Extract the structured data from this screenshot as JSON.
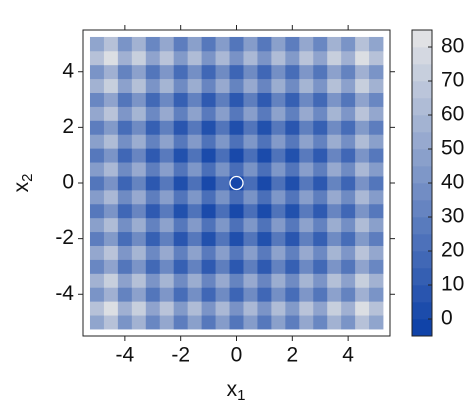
{
  "chart_data": {
    "type": "heatmap",
    "xlabel": "x",
    "xlabel_sub": "1",
    "ylabel": "x",
    "ylabel_sub": "2",
    "x": [
      -5,
      -4.5,
      -4,
      -3.5,
      -3,
      -2.5,
      -2,
      -1.5,
      -1,
      -0.5,
      0,
      0.5,
      1,
      1.5,
      2,
      2.5,
      3,
      3.5,
      4,
      4.5,
      5
    ],
    "y": [
      -5,
      -4.5,
      -4,
      -3.5,
      -3,
      -2.5,
      -2,
      -1.5,
      -1,
      -0.5,
      0,
      0.5,
      1,
      1.5,
      2,
      2.5,
      3,
      3.5,
      4,
      4.5,
      5
    ],
    "z": [
      [
        50,
        65.25,
        41,
        57.25,
        34,
        51.25,
        29,
        47.25,
        26,
        45.25,
        25,
        45.25,
        26,
        47.25,
        29,
        51.25,
        34,
        57.25,
        41,
        65.25,
        50
      ],
      [
        65.25,
        80.5,
        56.25,
        72.5,
        49.25,
        66.5,
        44.25,
        62.5,
        41.25,
        60.5,
        40.25,
        60.5,
        41.25,
        62.5,
        44.25,
        66.5,
        49.25,
        72.5,
        56.25,
        80.5,
        65.25
      ],
      [
        41,
        56.25,
        32,
        48.25,
        25,
        42.25,
        20,
        38.25,
        17,
        36.25,
        16,
        36.25,
        17,
        38.25,
        20,
        42.25,
        25,
        48.25,
        32,
        56.25,
        41
      ],
      [
        57.25,
        72.5,
        48.25,
        64.5,
        41.25,
        58.5,
        36.25,
        54.5,
        33.25,
        52.5,
        32.25,
        52.5,
        33.25,
        54.5,
        36.25,
        58.5,
        41.25,
        64.5,
        48.25,
        72.5,
        57.25
      ],
      [
        34,
        49.25,
        25,
        41.25,
        18,
        35.25,
        13,
        31.25,
        10,
        29.25,
        9,
        29.25,
        10,
        31.25,
        13,
        35.25,
        18,
        41.25,
        25,
        49.25,
        34
      ],
      [
        51.25,
        66.5,
        42.25,
        58.5,
        35.25,
        52.5,
        30.25,
        48.5,
        27.25,
        46.5,
        26.25,
        46.5,
        27.25,
        48.5,
        30.25,
        52.5,
        35.25,
        58.5,
        42.25,
        66.5,
        51.25
      ],
      [
        29,
        44.25,
        20,
        36.25,
        13,
        30.25,
        8,
        26.25,
        5,
        24.25,
        4,
        24.25,
        5,
        26.25,
        8,
        30.25,
        13,
        36.25,
        20,
        44.25,
        29
      ],
      [
        47.25,
        62.5,
        38.25,
        54.5,
        31.25,
        48.5,
        26.25,
        44.5,
        23.25,
        42.5,
        22.25,
        42.5,
        23.25,
        44.5,
        26.25,
        48.5,
        31.25,
        54.5,
        38.25,
        62.5,
        47.25
      ],
      [
        26,
        41.25,
        17,
        33.25,
        10,
        27.25,
        5,
        23.25,
        2,
        21.25,
        1,
        21.25,
        2,
        23.25,
        5,
        27.25,
        10,
        33.25,
        17,
        41.25,
        26
      ],
      [
        45.25,
        60.5,
        36.25,
        52.5,
        29.25,
        46.5,
        24.25,
        42.5,
        21.25,
        40.5,
        20.25,
        40.5,
        21.25,
        42.5,
        24.25,
        46.5,
        29.25,
        52.5,
        36.25,
        60.5,
        45.25
      ],
      [
        25,
        40.25,
        16,
        32.25,
        9,
        26.25,
        4,
        22.25,
        1,
        20.25,
        0,
        20.25,
        1,
        22.25,
        4,
        26.25,
        9,
        32.25,
        16,
        40.25,
        25
      ],
      [
        45.25,
        60.5,
        36.25,
        52.5,
        29.25,
        46.5,
        24.25,
        42.5,
        21.25,
        40.5,
        20.25,
        40.5,
        21.25,
        42.5,
        24.25,
        46.5,
        29.25,
        52.5,
        36.25,
        60.5,
        45.25
      ],
      [
        26,
        41.25,
        17,
        33.25,
        10,
        27.25,
        5,
        23.25,
        2,
        21.25,
        1,
        21.25,
        2,
        23.25,
        5,
        27.25,
        10,
        33.25,
        17,
        41.25,
        26
      ],
      [
        47.25,
        62.5,
        38.25,
        54.5,
        31.25,
        48.5,
        26.25,
        44.5,
        23.25,
        42.5,
        22.25,
        42.5,
        23.25,
        44.5,
        26.25,
        48.5,
        31.25,
        54.5,
        38.25,
        62.5,
        47.25
      ],
      [
        29,
        44.25,
        20,
        36.25,
        13,
        30.25,
        8,
        26.25,
        5,
        24.25,
        4,
        24.25,
        5,
        26.25,
        8,
        30.25,
        13,
        36.25,
        20,
        44.25,
        29
      ],
      [
        51.25,
        66.5,
        42.25,
        58.5,
        35.25,
        52.5,
        30.25,
        48.5,
        27.25,
        46.5,
        26.25,
        46.5,
        27.25,
        48.5,
        30.25,
        52.5,
        35.25,
        58.5,
        42.25,
        66.5,
        51.25
      ],
      [
        34,
        49.25,
        25,
        41.25,
        18,
        35.25,
        13,
        31.25,
        10,
        29.25,
        9,
        29.25,
        10,
        31.25,
        13,
        35.25,
        18,
        41.25,
        25,
        49.25,
        34
      ],
      [
        57.25,
        72.5,
        48.25,
        64.5,
        41.25,
        58.5,
        36.25,
        54.5,
        33.25,
        52.5,
        32.25,
        52.5,
        33.25,
        54.5,
        36.25,
        58.5,
        41.25,
        64.5,
        48.25,
        72.5,
        57.25
      ],
      [
        41,
        56.25,
        32,
        48.25,
        25,
        42.25,
        20,
        38.25,
        17,
        36.25,
        16,
        36.25,
        17,
        38.25,
        20,
        42.25,
        25,
        48.25,
        32,
        56.25,
        41
      ],
      [
        65.25,
        80.5,
        56.25,
        72.5,
        49.25,
        66.5,
        44.25,
        62.5,
        41.25,
        60.5,
        40.25,
        60.5,
        41.25,
        62.5,
        44.25,
        66.5,
        49.25,
        72.5,
        56.25,
        80.5,
        65.25
      ],
      [
        50,
        65.25,
        41,
        57.25,
        34,
        51.25,
        29,
        47.25,
        26,
        45.25,
        25,
        45.25,
        26,
        47.25,
        29,
        51.25,
        34,
        57.25,
        41,
        65.25,
        50
      ]
    ],
    "xlim": [
      -5.5,
      5.5
    ],
    "ylim": [
      -5.5,
      5.5
    ],
    "xticks": [
      -4,
      -2,
      0,
      2,
      4
    ],
    "yticks": [
      -4,
      -2,
      0,
      2,
      4
    ],
    "zlim": [
      -5,
      85
    ],
    "zticks": [
      0,
      10,
      20,
      30,
      40,
      50,
      60,
      70,
      80
    ],
    "colormap": [
      "#0a3ea6",
      "#e6e6e6"
    ],
    "marker": {
      "x": 0,
      "y": 0,
      "color": "#ffffff"
    }
  }
}
